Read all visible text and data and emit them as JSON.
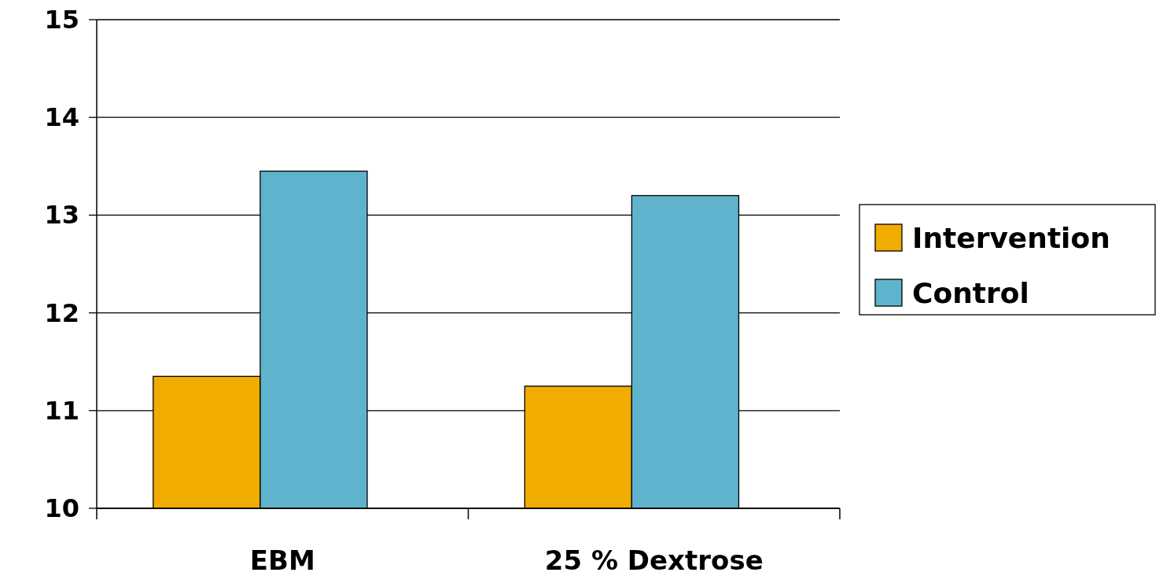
{
  "chart_data": {
    "type": "bar",
    "categories": [
      "EBM",
      "25 % Dextrose"
    ],
    "series": [
      {
        "name": "Intervention",
        "color": "#f0ac00",
        "values": [
          11.35,
          11.25
        ]
      },
      {
        "name": "Control",
        "color": "#60b3cc",
        "values": [
          13.45,
          13.2
        ]
      }
    ],
    "ylim": [
      10,
      15
    ],
    "yticks": [
      10,
      11,
      12,
      13,
      14,
      15
    ],
    "grid": "y",
    "legend": "right"
  }
}
